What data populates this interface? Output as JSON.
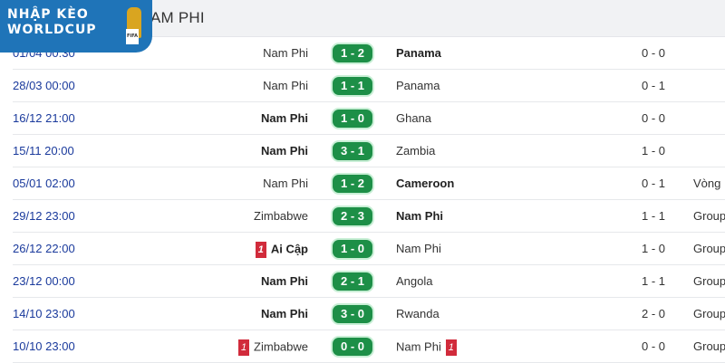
{
  "header": {
    "title": "TUYỂN NAM PHI"
  },
  "logo": {
    "text": "NHẬP KÈO WORLDCUP 26"
  },
  "matches": [
    {
      "date": "01/04 00:30",
      "home": "Nam Phi",
      "home_bold": false,
      "score": "1 - 2",
      "away": "Panama",
      "away_bold": true,
      "ht": "0 - 0",
      "round": ""
    },
    {
      "date": "28/03 00:00",
      "home": "Nam Phi",
      "home_bold": false,
      "score": "1 - 1",
      "away": "Panama",
      "away_bold": false,
      "ht": "0 - 1",
      "round": ""
    },
    {
      "date": "16/12 21:00",
      "home": "Nam Phi",
      "home_bold": true,
      "score": "1 - 0",
      "away": "Ghana",
      "away_bold": false,
      "ht": "0 - 0",
      "round": ""
    },
    {
      "date": "15/11 20:00",
      "home": "Nam Phi",
      "home_bold": true,
      "score": "3 - 1",
      "away": "Zambia",
      "away_bold": false,
      "ht": "1 - 0",
      "round": ""
    },
    {
      "date": "05/01 02:00",
      "home": "Nam Phi",
      "home_bold": false,
      "score": "1 - 2",
      "away": "Cameroon",
      "away_bold": true,
      "ht": "0 - 1",
      "round": "Vòng"
    },
    {
      "date": "29/12 23:00",
      "home": "Zimbabwe",
      "home_bold": false,
      "score": "2 - 3",
      "away": "Nam Phi",
      "away_bold": true,
      "ht": "1 - 1",
      "round": "Group"
    },
    {
      "date": "26/12 22:00",
      "home": "Ai Cập",
      "home_bold": true,
      "home_red": "1",
      "score": "1 - 0",
      "away": "Nam Phi",
      "away_bold": false,
      "ht": "1 - 0",
      "round": "Group"
    },
    {
      "date": "23/12 00:00",
      "home": "Nam Phi",
      "home_bold": true,
      "score": "2 - 1",
      "away": "Angola",
      "away_bold": false,
      "ht": "1 - 1",
      "round": "Group"
    },
    {
      "date": "14/10 23:00",
      "home": "Nam Phi",
      "home_bold": true,
      "score": "3 - 0",
      "away": "Rwanda",
      "away_bold": false,
      "ht": "2 - 0",
      "round": "Group"
    },
    {
      "date": "10/10 23:00",
      "home": "Zimbabwe",
      "home_bold": false,
      "home_red": "1",
      "score": "0 - 0",
      "away": "Nam Phi",
      "away_bold": false,
      "away_red": "1",
      "ht": "0 - 0",
      "round": "Group"
    }
  ],
  "colors": {
    "score_bg": "#1d8f47",
    "date": "#1a3a9c",
    "red_card": "#d12b3b",
    "logo_bg": "#1f74b8"
  }
}
